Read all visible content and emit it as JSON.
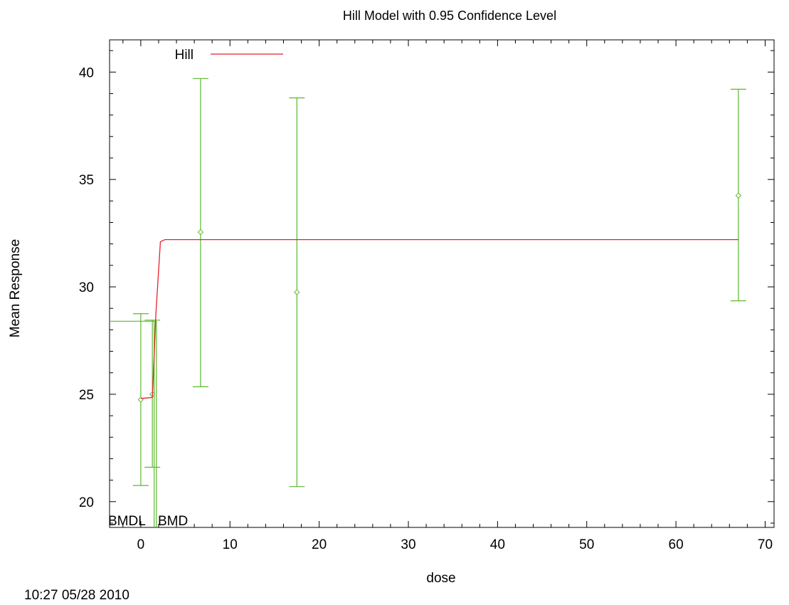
{
  "chart_data": {
    "type": "scatter",
    "title": "Hill Model with 0.95 Confidence Level",
    "xlabel": "dose",
    "ylabel": "Mean Response",
    "xlim": [
      -3.5,
      71
    ],
    "ylim": [
      18.8,
      41.5
    ],
    "xticks": [
      0,
      10,
      20,
      30,
      40,
      50,
      60,
      70
    ],
    "yticks": [
      20,
      25,
      30,
      35,
      40
    ],
    "grid": false,
    "legend": {
      "position": "top-left",
      "entries": [
        {
          "label": "Hill",
          "color": "#e8212c"
        }
      ]
    },
    "series": [
      {
        "name": "Hill",
        "kind": "line",
        "color": "#e8212c",
        "x": [
          0,
          1.3,
          1.7,
          2.2,
          2.7,
          3.2,
          67
        ],
        "y": [
          24.8,
          24.85,
          28.8,
          32.1,
          32.2,
          32.2,
          32.2
        ]
      },
      {
        "kind": "errorbar",
        "color": "#5cb82e",
        "points": [
          {
            "x": 0,
            "y": 24.75,
            "lower": 20.75,
            "upper": 28.75
          },
          {
            "x": 1.3,
            "y": 25.0,
            "lower": 21.6,
            "upper": 28.45
          },
          {
            "x": 6.7,
            "y": 32.55,
            "lower": 25.35,
            "upper": 39.7
          },
          {
            "x": 17.5,
            "y": 29.75,
            "lower": 20.7,
            "upper": 38.8
          },
          {
            "x": 67,
            "y": 34.25,
            "lower": 29.35,
            "upper": 39.2
          }
        ]
      }
    ],
    "bmd_markers": {
      "color": "#5cb82e",
      "bmr_response": 28.4,
      "bmdl": 1.5,
      "bmd": 1.75,
      "bmdl_label": "BMDL",
      "bmd_label": "BMD"
    }
  },
  "footer": {
    "timestamp": "10:27 05/28 2010"
  }
}
